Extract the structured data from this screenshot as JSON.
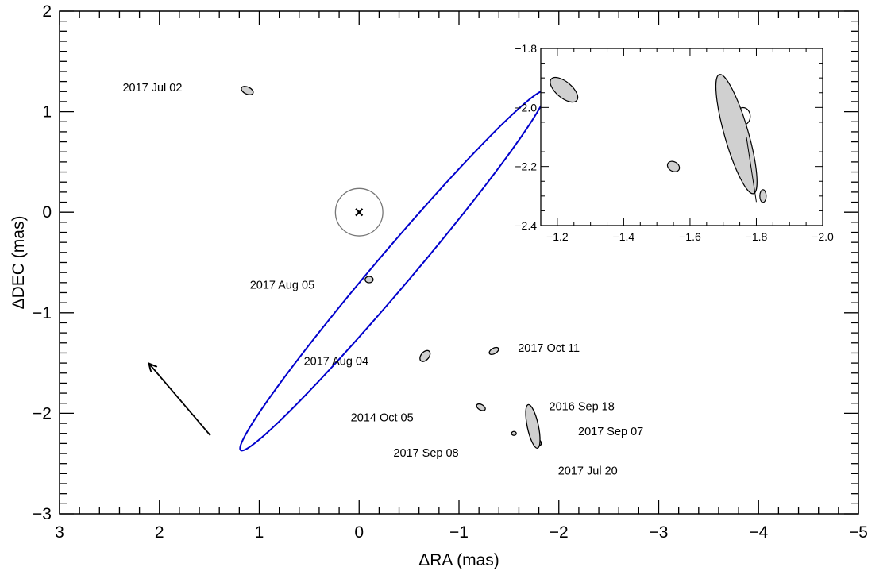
{
  "chart_data": [
    {
      "type": "scatter",
      "title": "",
      "xlabel": "ΔRA (mas)",
      "ylabel": "ΔDEC (mas)",
      "xlim": [
        3,
        -5
      ],
      "ylim": [
        -3,
        2
      ],
      "x_ticks": [
        3,
        2,
        1,
        0,
        -1,
        -2,
        -3,
        -4,
        -5
      ],
      "x_tick_labels": [
        "3",
        "2",
        "1",
        "0",
        "−1",
        "−2",
        "−3",
        "−4",
        "−5"
      ],
      "y_ticks": [
        2,
        1,
        0,
        -1,
        -2,
        -3
      ],
      "y_tick_labels": [
        "2",
        "1",
        "0",
        "−1",
        "−2",
        "−3"
      ],
      "orbit": {
        "center": [
          -0.34,
          -0.58
        ],
        "semi_major": 2.35,
        "semi_minor": 0.18,
        "pa_deg": -49.5,
        "color": "#0000cc"
      },
      "primary": {
        "x": 0,
        "y": 0,
        "marker": "×",
        "circle_radius": 0.095
      },
      "measurements": [
        {
          "label": "2017 Jul 02",
          "x": 1.12,
          "y": 1.21,
          "label_x": 2.07,
          "label_y": 1.24
        },
        {
          "label": "2017 Aug 05",
          "x": -0.1,
          "y": -0.67,
          "label_x": 0.77,
          "label_y": -0.72
        },
        {
          "label": "2017 Aug 04",
          "x": -0.66,
          "y": -1.43,
          "label_x": 0.23,
          "label_y": -1.48
        },
        {
          "label": "2017 Oct 11",
          "x": -1.35,
          "y": -1.38,
          "label_x": -1.9,
          "label_y": -1.35
        },
        {
          "label": "2014 Oct 05",
          "x": -1.22,
          "y": -1.94,
          "label_x": -0.23,
          "label_y": -2.04
        },
        {
          "label": "2016 Sep 18",
          "x": -1.73,
          "y": -2.03,
          "label_x": -2.23,
          "label_y": -1.93
        },
        {
          "label": "2017 Sep 07",
          "x": -1.79,
          "y": -2.29,
          "label_x": -2.52,
          "label_y": -2.18
        },
        {
          "label": "2017 Sep 08",
          "x": -1.55,
          "y": -2.2,
          "label_x": -0.67,
          "label_y": -2.39
        },
        {
          "label": "2017 Jul 20",
          "x": -1.8,
          "y": -2.3,
          "label_x": -2.29,
          "label_y": -2.57
        }
      ],
      "motion_arrow": {
        "from": [
          1.49,
          -2.22
        ],
        "to": [
          2.1,
          -1.51
        ]
      },
      "grid": false,
      "legend": "none"
    },
    {
      "type": "scatter",
      "title": "",
      "xlabel": "",
      "ylabel": "",
      "xlim": [
        -1.15,
        -2.0
      ],
      "ylim": [
        -2.4,
        -1.8
      ],
      "x_ticks": [
        -1.2,
        -1.4,
        -1.6,
        -1.8,
        -2.0
      ],
      "x_tick_labels": [
        "−1.2",
        "−1.4",
        "−1.6",
        "−1.8",
        "−2.0"
      ],
      "y_ticks": [
        -1.8,
        -2.0,
        -2.2,
        -2.4
      ],
      "y_tick_labels": [
        "−1.8",
        "−2.0",
        "−2.2",
        "−2.4"
      ],
      "points": [
        {
          "x": -1.22,
          "y": -1.94
        },
        {
          "x": -1.55,
          "y": -2.2
        },
        {
          "x": -1.76,
          "y": -2.03
        },
        {
          "x": -1.74,
          "y": -2.09
        },
        {
          "x": -1.82,
          "y": -2.3
        }
      ],
      "grid": false,
      "legend": "none"
    }
  ]
}
